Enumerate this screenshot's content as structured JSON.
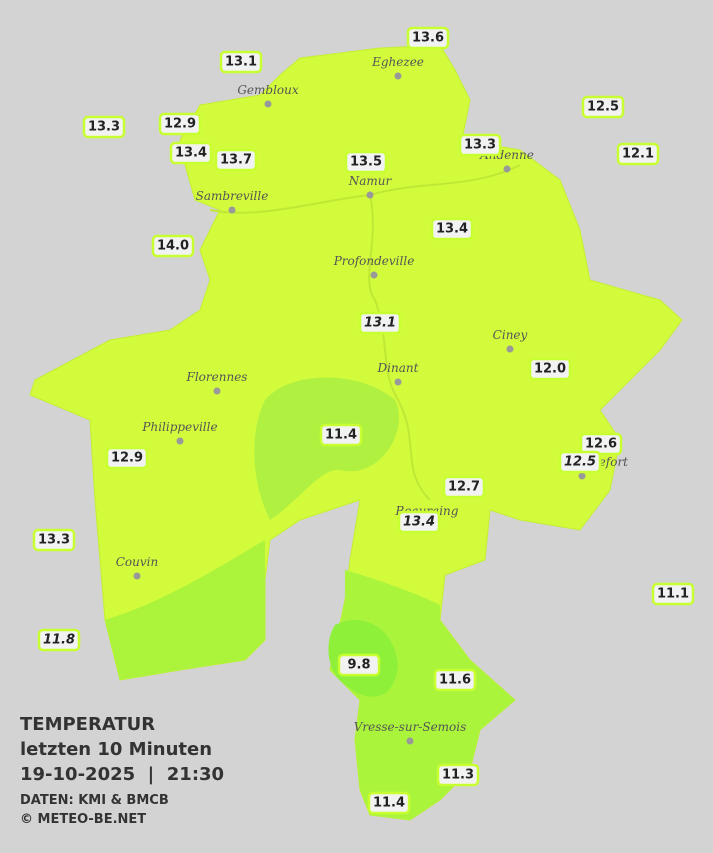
{
  "legend": {
    "title": "TEMPERATUR",
    "period": "letzten 10 Minuten",
    "datetime": "19-10-2025  |  21:30",
    "source": "DATEN: KMI & BMCB",
    "copyright": "© METEO-BE.NET"
  },
  "cities": [
    "Eghezee",
    "Gembloux",
    "Andenne",
    "Namur",
    "Sambreville",
    "Profondeville",
    "Ciney",
    "Dinant",
    "Florennes",
    "Philippeville",
    "Rochefort",
    "Beauraing",
    "Couvin",
    "Vresse-sur-Semois"
  ],
  "stations": [
    "13.6",
    "13.1",
    "12.5",
    "13.3",
    "12.9",
    "13.4",
    "13.7",
    "13.5",
    "13.3",
    "12.1",
    "14.0",
    "13.4",
    "13.1",
    "12.0",
    "11.4",
    "12.6",
    "12.5",
    "12.9",
    "12.7",
    "13.4",
    "13.3",
    "11.1",
    "11.8",
    "9.8",
    "11.6",
    "11.3",
    "11.4"
  ]
}
